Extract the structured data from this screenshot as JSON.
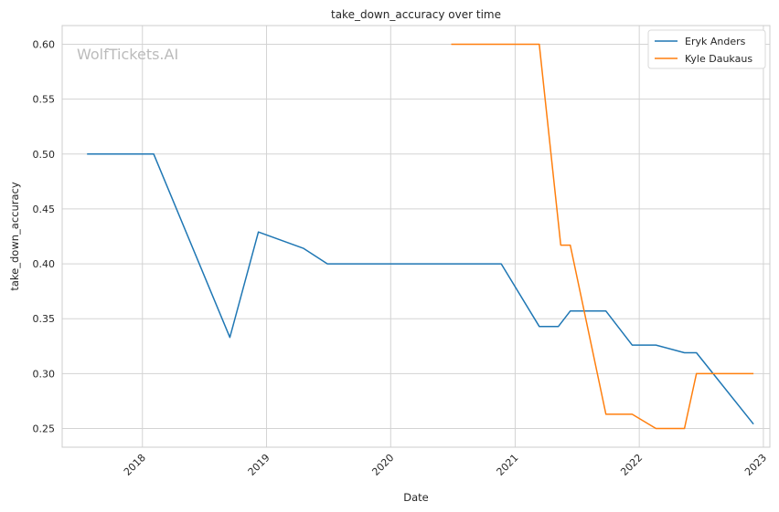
{
  "chart_data": {
    "type": "line",
    "title": "take_down_accuracy over time",
    "xlabel": "Date",
    "ylabel": "take_down_accuracy",
    "xlim": [
      "2017-05-10",
      "2023-01-20"
    ],
    "ylim": [
      0.233,
      0.617
    ],
    "x_ticks": [
      "2018-01-01",
      "2019-01-01",
      "2020-01-01",
      "2021-01-01",
      "2022-01-01",
      "2023-01-01"
    ],
    "x_tick_labels": [
      "2018",
      "2019",
      "2020",
      "2021",
      "2022",
      "2023"
    ],
    "y_ticks": [
      0.25,
      0.3,
      0.35,
      0.4,
      0.45,
      0.5,
      0.55,
      0.6
    ],
    "y_tick_labels": [
      "0.25",
      "0.30",
      "0.35",
      "0.40",
      "0.45",
      "0.50",
      "0.55",
      "0.60"
    ],
    "grid": true,
    "legend_position": "top-right",
    "watermark": "WolfTickets.AI",
    "series": [
      {
        "name": "Eryk Anders",
        "color": "#1f77b4",
        "points": [
          {
            "x": "2017-07-22",
            "y": 0.5
          },
          {
            "x": "2018-02-03",
            "y": 0.5
          },
          {
            "x": "2018-09-15",
            "y": 0.333
          },
          {
            "x": "2018-12-08",
            "y": 0.429
          },
          {
            "x": "2019-04-20",
            "y": 0.414
          },
          {
            "x": "2019-06-29",
            "y": 0.4
          },
          {
            "x": "2020-11-21",
            "y": 0.4
          },
          {
            "x": "2021-03-13",
            "y": 0.343
          },
          {
            "x": "2021-05-08",
            "y": 0.343
          },
          {
            "x": "2021-06-12",
            "y": 0.357
          },
          {
            "x": "2021-09-25",
            "y": 0.357
          },
          {
            "x": "2021-12-11",
            "y": 0.326
          },
          {
            "x": "2022-02-19",
            "y": 0.326
          },
          {
            "x": "2022-05-14",
            "y": 0.319
          },
          {
            "x": "2022-06-18",
            "y": 0.319
          },
          {
            "x": "2022-12-03",
            "y": 0.254
          }
        ]
      },
      {
        "name": "Kyle Daukaus",
        "color": "#ff7f0e",
        "points": [
          {
            "x": "2020-06-27",
            "y": 0.6
          },
          {
            "x": "2021-03-13",
            "y": 0.6
          },
          {
            "x": "2021-05-15",
            "y": 0.417
          },
          {
            "x": "2021-06-12",
            "y": 0.417
          },
          {
            "x": "2021-09-25",
            "y": 0.263
          },
          {
            "x": "2021-12-11",
            "y": 0.263
          },
          {
            "x": "2022-02-19",
            "y": 0.25
          },
          {
            "x": "2022-05-14",
            "y": 0.25
          },
          {
            "x": "2022-06-18",
            "y": 0.3
          },
          {
            "x": "2022-12-03",
            "y": 0.3
          }
        ]
      }
    ]
  }
}
